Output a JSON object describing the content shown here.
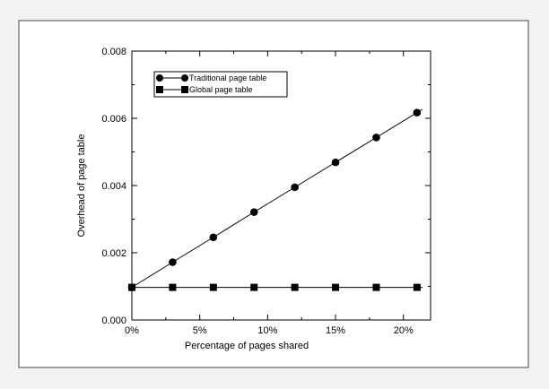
{
  "chart_data": {
    "type": "line",
    "title": "",
    "xlabel": "Percentage of pages shared",
    "ylabel": "Overhead of page table",
    "xlim": [
      0,
      22
    ],
    "ylim": [
      0,
      0.008
    ],
    "x_ticks": [
      0,
      5,
      10,
      15,
      20
    ],
    "x_tick_labels": [
      "0%",
      "5%",
      "10%",
      "15%",
      "20%"
    ],
    "y_ticks": [
      0,
      0.002,
      0.004,
      0.006,
      0.008
    ],
    "y_tick_labels": [
      "0.000",
      "0.002",
      "0.004",
      "0.006",
      "0.008"
    ],
    "grid": false,
    "legend_position": "top-left",
    "series": [
      {
        "name": "Traditional page table",
        "marker": "circle",
        "color": "#000000",
        "x": [
          0,
          3,
          6,
          9,
          12,
          15,
          18,
          21
        ],
        "y": [
          0.00097,
          0.00172,
          0.00246,
          0.00321,
          0.00395,
          0.00469,
          0.00543,
          0.00617
        ],
        "line_x_end": 21.4,
        "line_y_end": 0.00627
      },
      {
        "name": "Global page table",
        "marker": "square",
        "color": "#000000",
        "x": [
          0,
          3,
          6,
          9,
          12,
          15,
          18,
          21
        ],
        "y": [
          0.00097,
          0.00097,
          0.00097,
          0.00097,
          0.00097,
          0.00097,
          0.00097,
          0.00097
        ],
        "line_x_end": 21.4,
        "line_y_end": 0.00097
      }
    ]
  }
}
